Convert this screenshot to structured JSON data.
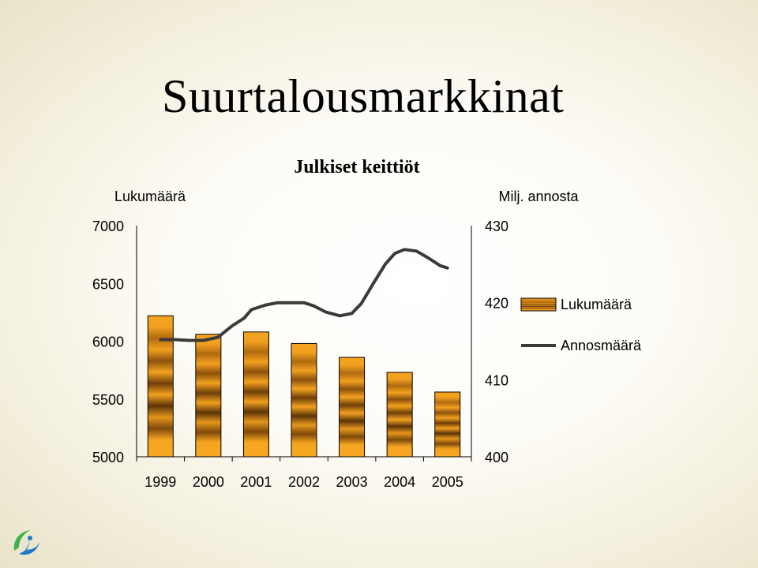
{
  "slide": {
    "title": "Suurtalousmarkkinat"
  },
  "chart_data": {
    "type": "bar",
    "title": "Julkiset keittiöt",
    "categories": [
      "1999",
      "2000",
      "2001",
      "2002",
      "2003",
      "2004",
      "2005"
    ],
    "y_left": {
      "label": "Lukumäärä",
      "range": [
        5000,
        7000
      ],
      "ticks": [
        "7000",
        "6500",
        "6000",
        "5500",
        "5000"
      ]
    },
    "y_right": {
      "label": "Milj. annosta",
      "range": [
        400,
        430
      ],
      "ticks": [
        "430",
        "420",
        "410",
        "400"
      ]
    },
    "series": [
      {
        "name": "Lukumäärä",
        "type": "bar",
        "axis": "left",
        "values": [
          6220,
          6060,
          6080,
          5980,
          5860,
          5730,
          5560
        ],
        "color": "#f5a020"
      },
      {
        "name": "Annosmäärä",
        "type": "line",
        "axis": "right",
        "color": "#3a3a3a",
        "points": [
          [
            1999.0,
            415.2
          ],
          [
            1999.3,
            415.2
          ],
          [
            1999.6,
            415.1
          ],
          [
            1999.9,
            415.1
          ],
          [
            2000.2,
            415.5
          ],
          [
            2000.5,
            417.0
          ],
          [
            2000.75,
            418.0
          ],
          [
            2000.9,
            419.1
          ],
          [
            2001.2,
            419.7
          ],
          [
            2001.45,
            420.0
          ],
          [
            2001.8,
            420.0
          ],
          [
            2002.0,
            420.0
          ],
          [
            2002.2,
            419.6
          ],
          [
            2002.45,
            418.8
          ],
          [
            2002.75,
            418.3
          ],
          [
            2003.0,
            418.6
          ],
          [
            2003.2,
            419.9
          ],
          [
            2003.45,
            422.5
          ],
          [
            2003.7,
            425.0
          ],
          [
            2003.9,
            426.4
          ],
          [
            2004.1,
            426.9
          ],
          [
            2004.35,
            426.7
          ],
          [
            2004.6,
            425.8
          ],
          [
            2004.85,
            424.8
          ],
          [
            2005.0,
            424.5
          ]
        ]
      }
    ],
    "legend": {
      "placement": "right"
    },
    "grid": false
  },
  "colors": {
    "bar_fill": "#f5a020",
    "bar_outline": "#000000",
    "line": "#3a3a3a",
    "logo_green": "#3bb54a",
    "logo_blue": "#1f7ac8"
  }
}
